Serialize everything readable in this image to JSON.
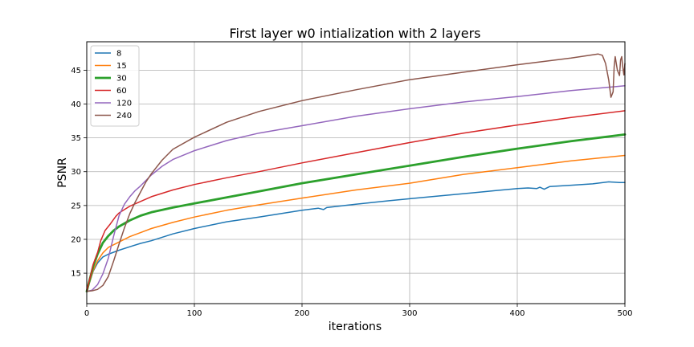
{
  "chart_data": {
    "type": "line",
    "title": "First layer w0 intialization with 2 layers",
    "xlabel": "iterations",
    "ylabel": "PSNR",
    "xlim": [
      0,
      500
    ],
    "ylim": [
      10.5,
      49.2
    ],
    "xticks": [
      0,
      100,
      200,
      300,
      400,
      500
    ],
    "yticks": [
      15,
      20,
      25,
      30,
      35,
      40,
      45
    ],
    "grid": true,
    "legend_position": "top-left",
    "series": [
      {
        "name": "8",
        "color": "#1f77b4",
        "width": 1.5,
        "points": [
          [
            0,
            12.3
          ],
          [
            3,
            13.8
          ],
          [
            6,
            15.3
          ],
          [
            10,
            16.5
          ],
          [
            15,
            17.4
          ],
          [
            20,
            17.8
          ],
          [
            30,
            18.4
          ],
          [
            40,
            18.9
          ],
          [
            50,
            19.4
          ],
          [
            60,
            19.8
          ],
          [
            80,
            20.8
          ],
          [
            100,
            21.6
          ],
          [
            130,
            22.6
          ],
          [
            160,
            23.3
          ],
          [
            200,
            24.3
          ],
          [
            215,
            24.6
          ],
          [
            220,
            24.4
          ],
          [
            223,
            24.7
          ],
          [
            250,
            25.2
          ],
          [
            280,
            25.7
          ],
          [
            300,
            26.0
          ],
          [
            320,
            26.3
          ],
          [
            340,
            26.6
          ],
          [
            360,
            26.9
          ],
          [
            380,
            27.2
          ],
          [
            400,
            27.5
          ],
          [
            410,
            27.6
          ],
          [
            418,
            27.5
          ],
          [
            421,
            27.7
          ],
          [
            425,
            27.4
          ],
          [
            430,
            27.8
          ],
          [
            450,
            28.0
          ],
          [
            470,
            28.2
          ],
          [
            485,
            28.5
          ],
          [
            495,
            28.4
          ],
          [
            500,
            28.4
          ]
        ]
      },
      {
        "name": "15",
        "color": "#ff7f0e",
        "width": 1.5,
        "points": [
          [
            0,
            12.3
          ],
          [
            3,
            13.8
          ],
          [
            6,
            15.4
          ],
          [
            10,
            16.8
          ],
          [
            15,
            18.0
          ],
          [
            20,
            18.8
          ],
          [
            30,
            19.6
          ],
          [
            40,
            20.4
          ],
          [
            50,
            21.0
          ],
          [
            60,
            21.6
          ],
          [
            80,
            22.5
          ],
          [
            100,
            23.3
          ],
          [
            130,
            24.3
          ],
          [
            160,
            25.1
          ],
          [
            200,
            26.1
          ],
          [
            250,
            27.3
          ],
          [
            300,
            28.3
          ],
          [
            350,
            29.6
          ],
          [
            400,
            30.6
          ],
          [
            450,
            31.6
          ],
          [
            500,
            32.4
          ]
        ]
      },
      {
        "name": "30",
        "color": "#2ca02c",
        "width": 2.8,
        "points": [
          [
            0,
            12.3
          ],
          [
            3,
            14.2
          ],
          [
            6,
            16.0
          ],
          [
            10,
            17.8
          ],
          [
            15,
            19.5
          ],
          [
            20,
            20.5
          ],
          [
            25,
            21.3
          ],
          [
            30,
            21.9
          ],
          [
            40,
            22.8
          ],
          [
            50,
            23.5
          ],
          [
            60,
            24.0
          ],
          [
            80,
            24.7
          ],
          [
            100,
            25.3
          ],
          [
            130,
            26.2
          ],
          [
            160,
            27.1
          ],
          [
            200,
            28.3
          ],
          [
            250,
            29.6
          ],
          [
            300,
            30.9
          ],
          [
            350,
            32.2
          ],
          [
            400,
            33.4
          ],
          [
            450,
            34.5
          ],
          [
            500,
            35.5
          ]
        ]
      },
      {
        "name": "60",
        "color": "#d62728",
        "width": 1.5,
        "points": [
          [
            0,
            12.3
          ],
          [
            3,
            14.3
          ],
          [
            6,
            16.3
          ],
          [
            10,
            18.0
          ],
          [
            13,
            19.8
          ],
          [
            17,
            21.3
          ],
          [
            22,
            22.3
          ],
          [
            27,
            23.4
          ],
          [
            30,
            23.9
          ],
          [
            35,
            24.4
          ],
          [
            40,
            24.9
          ],
          [
            50,
            25.6
          ],
          [
            60,
            26.3
          ],
          [
            80,
            27.3
          ],
          [
            100,
            28.1
          ],
          [
            130,
            29.1
          ],
          [
            160,
            30.0
          ],
          [
            200,
            31.3
          ],
          [
            250,
            32.8
          ],
          [
            300,
            34.3
          ],
          [
            350,
            35.7
          ],
          [
            400,
            36.9
          ],
          [
            450,
            38.0
          ],
          [
            500,
            39.0
          ]
        ]
      },
      {
        "name": "120",
        "color": "#9467bd",
        "width": 1.5,
        "points": [
          [
            0,
            12.3
          ],
          [
            5,
            12.5
          ],
          [
            10,
            13.3
          ],
          [
            15,
            14.9
          ],
          [
            20,
            17.2
          ],
          [
            25,
            20.5
          ],
          [
            30,
            23.5
          ],
          [
            35,
            25.2
          ],
          [
            40,
            26.3
          ],
          [
            45,
            27.2
          ],
          [
            50,
            27.9
          ],
          [
            60,
            29.5
          ],
          [
            70,
            30.8
          ],
          [
            80,
            31.8
          ],
          [
            100,
            33.1
          ],
          [
            130,
            34.6
          ],
          [
            160,
            35.7
          ],
          [
            200,
            36.8
          ],
          [
            250,
            38.2
          ],
          [
            300,
            39.3
          ],
          [
            350,
            40.3
          ],
          [
            400,
            41.1
          ],
          [
            450,
            42.0
          ],
          [
            500,
            42.7
          ]
        ]
      },
      {
        "name": "240",
        "color": "#8c564b",
        "width": 1.5,
        "points": [
          [
            0,
            12.3
          ],
          [
            5,
            12.4
          ],
          [
            10,
            12.6
          ],
          [
            15,
            13.2
          ],
          [
            20,
            14.5
          ],
          [
            25,
            16.8
          ],
          [
            30,
            19.3
          ],
          [
            35,
            21.7
          ],
          [
            40,
            23.8
          ],
          [
            45,
            25.5
          ],
          [
            50,
            27.0
          ],
          [
            55,
            28.5
          ],
          [
            60,
            29.7
          ],
          [
            70,
            31.7
          ],
          [
            80,
            33.3
          ],
          [
            100,
            35.1
          ],
          [
            130,
            37.3
          ],
          [
            160,
            38.9
          ],
          [
            200,
            40.5
          ],
          [
            250,
            42.1
          ],
          [
            300,
            43.6
          ],
          [
            350,
            44.7
          ],
          [
            400,
            45.8
          ],
          [
            450,
            46.8
          ],
          [
            475,
            47.4
          ],
          [
            479,
            47.2
          ],
          [
            482,
            46.0
          ],
          [
            485,
            43.5
          ],
          [
            487,
            41.0
          ],
          [
            489,
            41.8
          ],
          [
            490,
            45.5
          ],
          [
            491,
            47.0
          ],
          [
            493,
            45.0
          ],
          [
            495,
            44.2
          ],
          [
            496,
            46.5
          ],
          [
            497,
            47.0
          ],
          [
            498,
            45.5
          ],
          [
            499,
            44.3
          ],
          [
            500,
            46.0
          ]
        ]
      }
    ]
  }
}
